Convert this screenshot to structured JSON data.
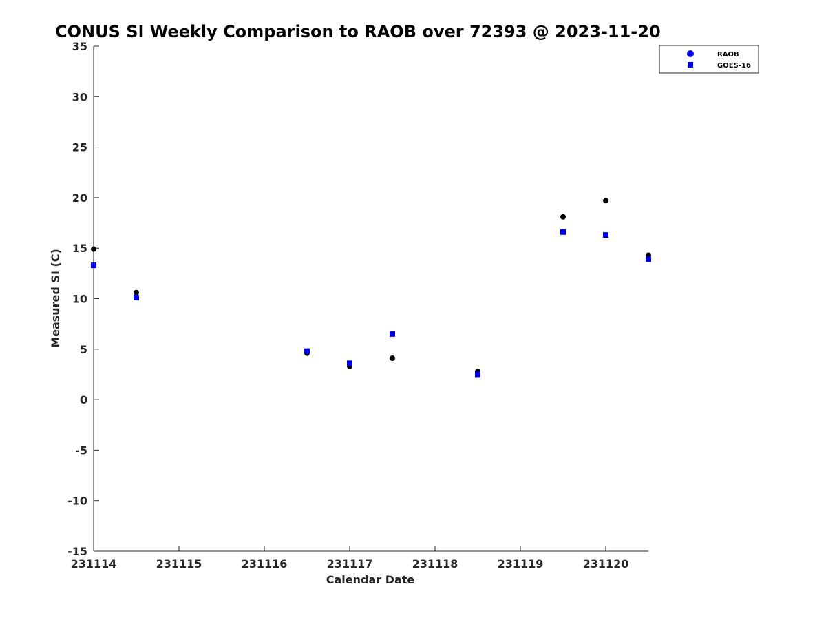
{
  "chart_data": {
    "type": "scatter",
    "title": "CONUS SI Weekly Comparison to RAOB over 72393 @ 2023-11-20",
    "xlabel": "Calendar Date",
    "ylabel": "Measured SI (C)",
    "xlim": [
      0,
      6.5
    ],
    "ylim": [
      -15,
      35
    ],
    "x_ticks": [
      {
        "value": 0,
        "label": "231114"
      },
      {
        "value": 1,
        "label": "231115"
      },
      {
        "value": 2,
        "label": "231116"
      },
      {
        "value": 3,
        "label": "231117"
      },
      {
        "value": 4,
        "label": "231118"
      },
      {
        "value": 5,
        "label": "231119"
      },
      {
        "value": 6,
        "label": "231120"
      }
    ],
    "y_ticks": [
      35,
      30,
      25,
      20,
      15,
      10,
      5,
      0,
      -5,
      -10,
      -15
    ],
    "legend_position": "top-right",
    "series": [
      {
        "name": "RAOB",
        "marker": "circle",
        "color": "#000000",
        "legend_color": "#0000e6",
        "x": [
          0,
          0.5,
          2.5,
          3,
          3.5,
          4.5,
          5.5,
          6,
          6.5
        ],
        "y": [
          14.9,
          10.6,
          4.6,
          3.3,
          4.1,
          2.8,
          18.1,
          19.7,
          14.3
        ]
      },
      {
        "name": "GOES-16",
        "marker": "square",
        "color": "#0000e6",
        "legend_color": "#0000e6",
        "x": [
          0,
          0.5,
          2.5,
          3,
          3.5,
          4.5,
          5.5,
          6,
          6.5
        ],
        "y": [
          13.3,
          10.1,
          4.8,
          3.6,
          6.5,
          2.5,
          16.6,
          16.3,
          13.9
        ]
      }
    ]
  }
}
